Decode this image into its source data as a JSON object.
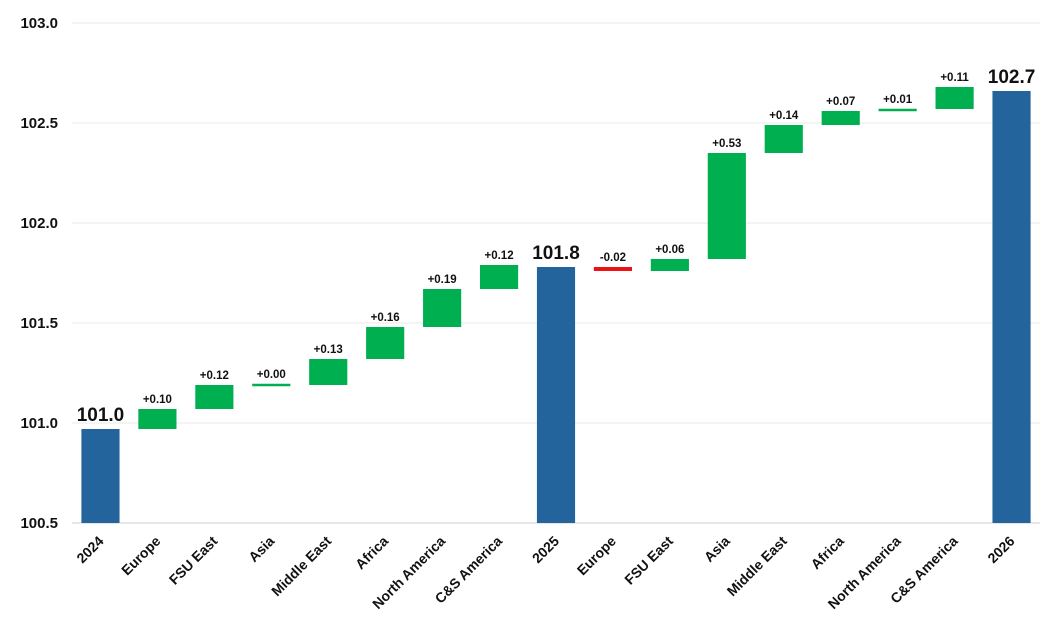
{
  "chart_data": {
    "type": "bar",
    "subtype": "waterfall",
    "categories": [
      "2024",
      "Europe",
      "FSU East",
      "Asia",
      "Middle East",
      "Africa",
      "North America",
      "C&S America",
      "2025",
      "Europe",
      "FSU East",
      "Asia",
      "Middle East",
      "Africa",
      "North America",
      "C&S America",
      "2026"
    ],
    "bar_kind": [
      "total",
      "delta",
      "delta",
      "delta",
      "delta",
      "delta",
      "delta",
      "delta",
      "total",
      "delta",
      "delta",
      "delta",
      "delta",
      "delta",
      "delta",
      "delta",
      "total"
    ],
    "values": [
      100.97,
      0.1,
      0.12,
      0.0,
      0.13,
      0.16,
      0.19,
      0.12,
      101.78,
      -0.02,
      0.06,
      0.53,
      0.14,
      0.07,
      0.01,
      0.11,
      102.66
    ],
    "data_labels": [
      "101.0",
      "+0.10",
      "+0.12",
      "+0.00",
      "+0.13",
      "+0.16",
      "+0.19",
      "+0.12",
      "101.8",
      "-0.02",
      "+0.06",
      "+0.53",
      "+0.14",
      "+0.07",
      "+0.01",
      "+0.11",
      "102.7"
    ],
    "ylim": [
      100.5,
      103.0
    ],
    "yticks": [
      "100.5",
      "101.0",
      "101.5",
      "102.0",
      "102.5",
      "103.0"
    ],
    "grid": true,
    "colors": {
      "total": "#23649c",
      "increase": "#00b050",
      "decrease": "#ee1111"
    }
  }
}
